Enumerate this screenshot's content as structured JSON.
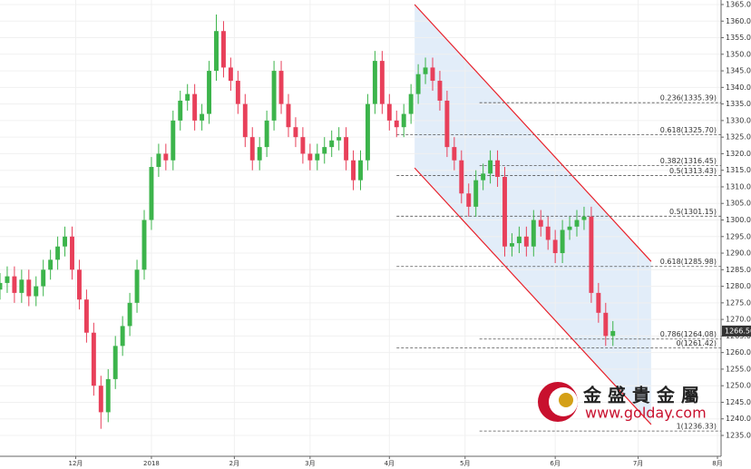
{
  "chart_data": {
    "type": "candlestick",
    "up_color": "#3cb44b",
    "down_color": "#e8405a",
    "grid": true,
    "x": [
      0,
      2,
      4,
      6,
      8,
      10,
      12,
      14,
      16,
      18,
      20,
      22,
      24,
      26,
      28,
      30,
      32,
      34,
      36,
      38,
      40,
      42,
      44,
      46,
      48,
      50,
      52,
      54,
      56,
      58,
      60,
      62,
      64,
      66,
      68,
      70,
      72,
      74,
      76,
      78,
      80,
      82,
      84,
      86,
      88,
      90,
      92,
      94,
      96,
      98,
      100,
      102,
      104,
      106,
      108,
      110,
      112,
      114,
      116,
      118,
      120,
      122,
      124,
      126,
      128,
      130,
      132,
      134,
      136,
      138,
      140,
      142,
      144,
      146,
      148,
      150,
      152,
      154,
      156,
      158,
      160,
      162,
      164,
      166,
      168,
      170
    ],
    "open": [
      1279,
      1281,
      1283,
      1278,
      1282,
      1277,
      1280,
      1285,
      1288,
      1292,
      1295,
      1285,
      1276,
      1266,
      1250,
      1242,
      1252,
      1262,
      1268,
      1275,
      1285,
      1300,
      1316,
      1320,
      1318,
      1330,
      1336,
      1338,
      1330,
      1332,
      1345,
      1357,
      1346,
      1342,
      1335,
      1325,
      1318,
      1322,
      1330,
      1345,
      1335,
      1328,
      1325,
      1320,
      1318,
      1320,
      1322,
      1324,
      1325,
      1318,
      1312,
      1318,
      1335,
      1348,
      1335,
      1330,
      1328,
      1332,
      1338,
      1344,
      1346,
      1342,
      1336,
      1322,
      1318,
      1308,
      1304,
      1312,
      1314,
      1318,
      1313,
      1292,
      1293,
      1295,
      1292,
      1300,
      1298,
      1294,
      1290,
      1297,
      1298,
      1300,
      1301,
      1278,
      1272,
      1265
    ],
    "high": [
      1284,
      1286,
      1286,
      1285,
      1285,
      1283,
      1288,
      1291,
      1295,
      1298,
      1298,
      1288,
      1279,
      1269,
      1253,
      1255,
      1265,
      1271,
      1278,
      1288,
      1303,
      1319,
      1323,
      1323,
      1333,
      1339,
      1341,
      1341,
      1335,
      1348,
      1362,
      1360,
      1349,
      1345,
      1338,
      1328,
      1325,
      1333,
      1348,
      1348,
      1338,
      1331,
      1328,
      1323,
      1323,
      1325,
      1327,
      1328,
      1328,
      1321,
      1321,
      1338,
      1351,
      1351,
      1338,
      1333,
      1335,
      1341,
      1347,
      1349,
      1349,
      1345,
      1339,
      1325,
      1321,
      1311,
      1315,
      1317,
      1321,
      1321,
      1316,
      1296,
      1298,
      1298,
      1303,
      1303,
      1301,
      1297,
      1300,
      1301,
      1303,
      1304,
      1304,
      1281,
      1275,
      1269.5
    ],
    "low": [
      1276,
      1278,
      1275,
      1275,
      1274,
      1274,
      1277,
      1282,
      1285,
      1289,
      1282,
      1273,
      1263,
      1247,
      1237,
      1239,
      1249,
      1259,
      1265,
      1272,
      1282,
      1297,
      1313,
      1315,
      1315,
      1327,
      1333,
      1327,
      1327,
      1329,
      1342,
      1343,
      1339,
      1332,
      1322,
      1315,
      1315,
      1319,
      1327,
      1332,
      1325,
      1322,
      1317,
      1315,
      1315,
      1317,
      1319,
      1321,
      1315,
      1309,
      1309,
      1315,
      1332,
      1332,
      1327,
      1325,
      1325,
      1329,
      1335,
      1341,
      1339,
      1333,
      1319,
      1315,
      1305,
      1301,
      1301,
      1309,
      1311,
      1310,
      1289,
      1289,
      1290,
      1289,
      1289,
      1295,
      1291,
      1287,
      1287,
      1294,
      1295,
      1297,
      1275,
      1269,
      1262,
      1262
    ],
    "close": [
      1281,
      1283,
      1278,
      1282,
      1277,
      1280,
      1285,
      1288,
      1292,
      1295,
      1285,
      1276,
      1266,
      1250,
      1242,
      1252,
      1262,
      1268,
      1275,
      1285,
      1300,
      1316,
      1320,
      1318,
      1330,
      1336,
      1338,
      1330,
      1332,
      1345,
      1357,
      1346,
      1342,
      1335,
      1325,
      1318,
      1322,
      1330,
      1345,
      1335,
      1328,
      1325,
      1320,
      1318,
      1320,
      1322,
      1324,
      1325,
      1318,
      1312,
      1318,
      1335,
      1348,
      1335,
      1330,
      1328,
      1332,
      1338,
      1344,
      1346,
      1342,
      1336,
      1322,
      1318,
      1308,
      1304,
      1312,
      1314,
      1318,
      1313,
      1292,
      1293,
      1295,
      1292,
      1300,
      1298,
      1294,
      1290,
      1297,
      1298,
      1300,
      1301,
      1278,
      1272,
      1265,
      1266.5
    ],
    "xlim": [
      0,
      200
    ],
    "xticks": [
      {
        "value": 21,
        "label": "12月"
      },
      {
        "value": 42,
        "label": "2018"
      },
      {
        "value": 65,
        "label": "2月"
      },
      {
        "value": 86,
        "label": "3月"
      },
      {
        "value": 108,
        "label": "4月"
      },
      {
        "value": 129,
        "label": "5月"
      },
      {
        "value": 154,
        "label": "6月"
      },
      {
        "value": 177,
        "label": "7月"
      },
      {
        "value": 199,
        "label": "8月"
      }
    ],
    "ylim": [
      1235,
      1365
    ],
    "yticks": [
      {
        "value": 1235,
        "label": "1235.00"
      },
      {
        "value": 1240,
        "label": "1240.00"
      },
      {
        "value": 1245,
        "label": "1245.00"
      },
      {
        "value": 1250,
        "label": "1250.00"
      },
      {
        "value": 1255,
        "label": "1255.00"
      },
      {
        "value": 1260,
        "label": "1260.00"
      },
      {
        "value": 1265,
        "label": "1265.00"
      },
      {
        "value": 1270,
        "label": "1270.00"
      },
      {
        "value": 1275,
        "label": "1275.00"
      },
      {
        "value": 1280,
        "label": "1280.00"
      },
      {
        "value": 1285,
        "label": "1285.00"
      },
      {
        "value": 1290,
        "label": "1290.00"
      },
      {
        "value": 1295,
        "label": "1295.00"
      },
      {
        "value": 1300,
        "label": "1300.00"
      },
      {
        "value": 1305,
        "label": "1305.00"
      },
      {
        "value": 1310,
        "label": "1310.00"
      },
      {
        "value": 1315,
        "label": "1315.00"
      },
      {
        "value": 1320,
        "label": "1320.00"
      },
      {
        "value": 1325,
        "label": "1325.00"
      },
      {
        "value": 1330,
        "label": "1330.00"
      },
      {
        "value": 1335,
        "label": "1335.00"
      },
      {
        "value": 1340,
        "label": "1340.00"
      },
      {
        "value": 1345,
        "label": "1345.00"
      },
      {
        "value": 1350,
        "label": "1350.00"
      },
      {
        "value": 1355,
        "label": "1355.00"
      },
      {
        "value": 1360,
        "label": "1360.00"
      },
      {
        "value": 1365,
        "label": "1365.00"
      }
    ],
    "fib_levels": [
      {
        "value": 1335.39,
        "label": "0.236(1335.39)"
      },
      {
        "value": 1325.7,
        "label": "0.618(1325.70)"
      },
      {
        "value": 1316.45,
        "label": "0.382(1316.45)"
      },
      {
        "value": 1313.43,
        "label": "0.5(1313.43)"
      },
      {
        "value": 1301.15,
        "label": "0.5(1301.15)"
      },
      {
        "value": 1285.98,
        "label": "0.618(1285.98)"
      },
      {
        "value": 1264.08,
        "label": "0.786(1264.08)"
      },
      {
        "value": 1261.42,
        "label": "0(1261.42)"
      },
      {
        "value": 1236.33,
        "label": "1(1236.33)"
      }
    ],
    "channel": {
      "upper": [
        [
          115,
          1365
        ],
        [
          180.6,
          1287.5
        ]
      ],
      "lower": [
        [
          115,
          1315.7
        ],
        [
          180.6,
          1238.3
        ]
      ],
      "color": "#e8202a"
    },
    "last_price": {
      "value": 1266.5,
      "label": "1266.50"
    }
  },
  "logo": {
    "name": "金 盛 貴 金 屬",
    "url": "www.golday.com"
  }
}
